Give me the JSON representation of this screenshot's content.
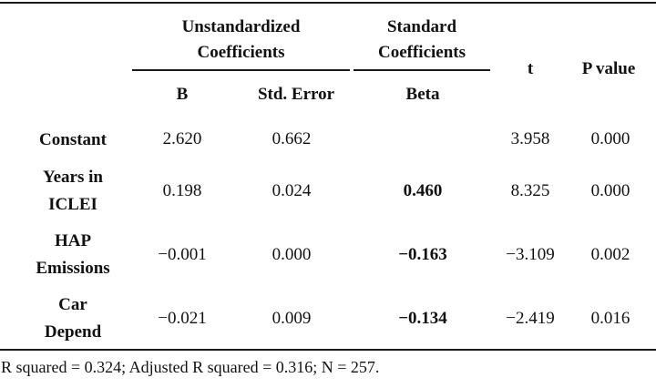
{
  "table": {
    "header": {
      "group_unstandardized_line1": "Unstandardized",
      "group_unstandardized_line2": "Coefficients",
      "group_standard_line1": "Standard",
      "group_standard_line2": "Coefficients",
      "col_t": "t",
      "col_p": "P value",
      "col_b": "B",
      "col_se": "Std. Error",
      "col_beta": "Beta"
    },
    "rows": [
      {
        "label_line1": "Constant",
        "label_line2": "",
        "b": "2.620",
        "se": "0.662",
        "beta": "",
        "t": "3.958",
        "p": "0.000"
      },
      {
        "label_line1": "Years in",
        "label_line2": "ICLEI",
        "b": "0.198",
        "se": "0.024",
        "beta": "0.460",
        "t": "8.325",
        "p": "0.000"
      },
      {
        "label_line1": "HAP",
        "label_line2": "Emissions",
        "b": "−0.001",
        "se": "0.000",
        "beta": "−0.163",
        "t": "−3.109",
        "p": "0.002"
      },
      {
        "label_line1": "Car",
        "label_line2": "Depend",
        "b": "−0.021",
        "se": "0.009",
        "beta": "−0.134",
        "t": "−2.419",
        "p": "0.016"
      }
    ]
  },
  "footnote": "R squared = 0.324; Adjusted R squared = 0.316; N = 257."
}
